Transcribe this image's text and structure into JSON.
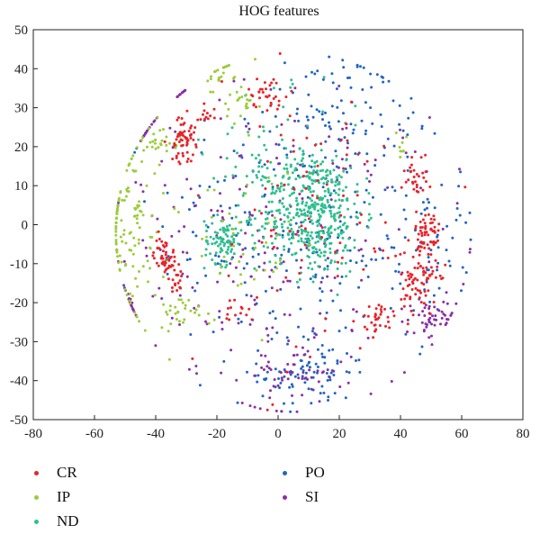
{
  "chart_data": {
    "type": "scatter",
    "title": "HOG features",
    "xlabel": "",
    "ylabel": "",
    "xlim": [
      -80,
      80
    ],
    "ylim": [
      -50,
      50
    ],
    "xticks": [
      -80,
      -60,
      -40,
      -20,
      0,
      20,
      40,
      60,
      80
    ],
    "yticks": [
      -50,
      -40,
      -30,
      -20,
      -10,
      0,
      10,
      20,
      30,
      40,
      50
    ],
    "grid": false,
    "legend_position": "bottom",
    "series": [
      {
        "name": "CR",
        "color": "#e8232a",
        "clusters": [
          {
            "cx": -31,
            "cy": 22,
            "sx": 2.0,
            "sy": 3.0,
            "n": 60
          },
          {
            "cx": -37,
            "cy": -8,
            "sx": 1.8,
            "sy": 2.5,
            "n": 50
          },
          {
            "cx": -34,
            "cy": -14,
            "sx": 1.5,
            "sy": 2.0,
            "n": 20
          },
          {
            "cx": -4,
            "cy": 34,
            "sx": 3.0,
            "sy": 2.0,
            "n": 30
          },
          {
            "cx": -24,
            "cy": 28,
            "sx": 2.0,
            "sy": 2.0,
            "n": 12
          },
          {
            "cx": 49,
            "cy": -3,
            "sx": 2.0,
            "sy": 4.0,
            "n": 60
          },
          {
            "cx": 46,
            "cy": -15,
            "sx": 3.0,
            "sy": 4.0,
            "n": 70
          },
          {
            "cx": 45,
            "cy": 12,
            "sx": 2.0,
            "sy": 3.0,
            "n": 30
          },
          {
            "cx": 33,
            "cy": -24,
            "sx": 2.5,
            "sy": 2.0,
            "n": 30
          },
          {
            "cx": -13,
            "cy": -21,
            "sx": 2.5,
            "sy": 2.0,
            "n": 15
          },
          {
            "cx": 10,
            "cy": 0,
            "sx": 22.0,
            "sy": 20.0,
            "n": 90
          }
        ]
      },
      {
        "name": "IP",
        "color": "#9ccc3a",
        "clusters": [
          {
            "cx": -50,
            "cy": 0,
            "sx": 7.0,
            "sy": 12.0,
            "n": 130
          },
          {
            "cx": -38,
            "cy": 22,
            "sx": 3.0,
            "sy": 2.0,
            "n": 25
          },
          {
            "cx": -20,
            "cy": 38,
            "sx": 2.0,
            "sy": 3.0,
            "n": 20
          },
          {
            "cx": -12,
            "cy": 30,
            "sx": 3.0,
            "sy": 5.0,
            "n": 25
          },
          {
            "cx": -30,
            "cy": -22,
            "sx": 5.0,
            "sy": 2.0,
            "n": 30
          },
          {
            "cx": -10,
            "cy": -5,
            "sx": 8.0,
            "sy": 10.0,
            "n": 40
          },
          {
            "cx": 40,
            "cy": 20,
            "sx": 1.5,
            "sy": 1.5,
            "n": 8
          }
        ]
      },
      {
        "name": "ND",
        "color": "#2fbf8f",
        "clusters": [
          {
            "cx": 12,
            "cy": 3,
            "sx": 8.0,
            "sy": 8.0,
            "n": 380
          },
          {
            "cx": -18,
            "cy": -4,
            "sx": 3.0,
            "sy": 3.0,
            "n": 90
          },
          {
            "cx": 2,
            "cy": 12,
            "sx": 12.0,
            "sy": 10.0,
            "n": 120
          }
        ]
      },
      {
        "name": "PO",
        "color": "#2164c6",
        "clusters": [
          {
            "cx": 8,
            "cy": 0,
            "sx": 24.0,
            "sy": 20.0,
            "n": 260
          },
          {
            "cx": 10,
            "cy": -38,
            "sx": 8.0,
            "sy": 5.0,
            "n": 80
          },
          {
            "cx": 20,
            "cy": 30,
            "sx": 12.0,
            "sy": 8.0,
            "n": 60
          },
          {
            "cx": 52,
            "cy": -8,
            "sx": 6.0,
            "sy": 10.0,
            "n": 40
          }
        ]
      },
      {
        "name": "SI",
        "color": "#8a2fa6",
        "clusters": [
          {
            "cx": 0,
            "cy": -5,
            "sx": 28.0,
            "sy": 20.0,
            "n": 220
          },
          {
            "cx": 50,
            "cy": -25,
            "sx": 4.0,
            "sy": 3.0,
            "n": 45
          },
          {
            "cx": -49,
            "cy": -21,
            "sx": 1.2,
            "sy": 2.0,
            "n": 15
          },
          {
            "cx": -48,
            "cy": 28,
            "sx": 1.0,
            "sy": 2.0,
            "n": 12
          },
          {
            "cx": -34,
            "cy": 35,
            "sx": 1.0,
            "sy": 2.0,
            "n": 10
          },
          {
            "cx": 5,
            "cy": -38,
            "sx": 8.0,
            "sy": 4.0,
            "n": 50
          }
        ]
      }
    ]
  }
}
